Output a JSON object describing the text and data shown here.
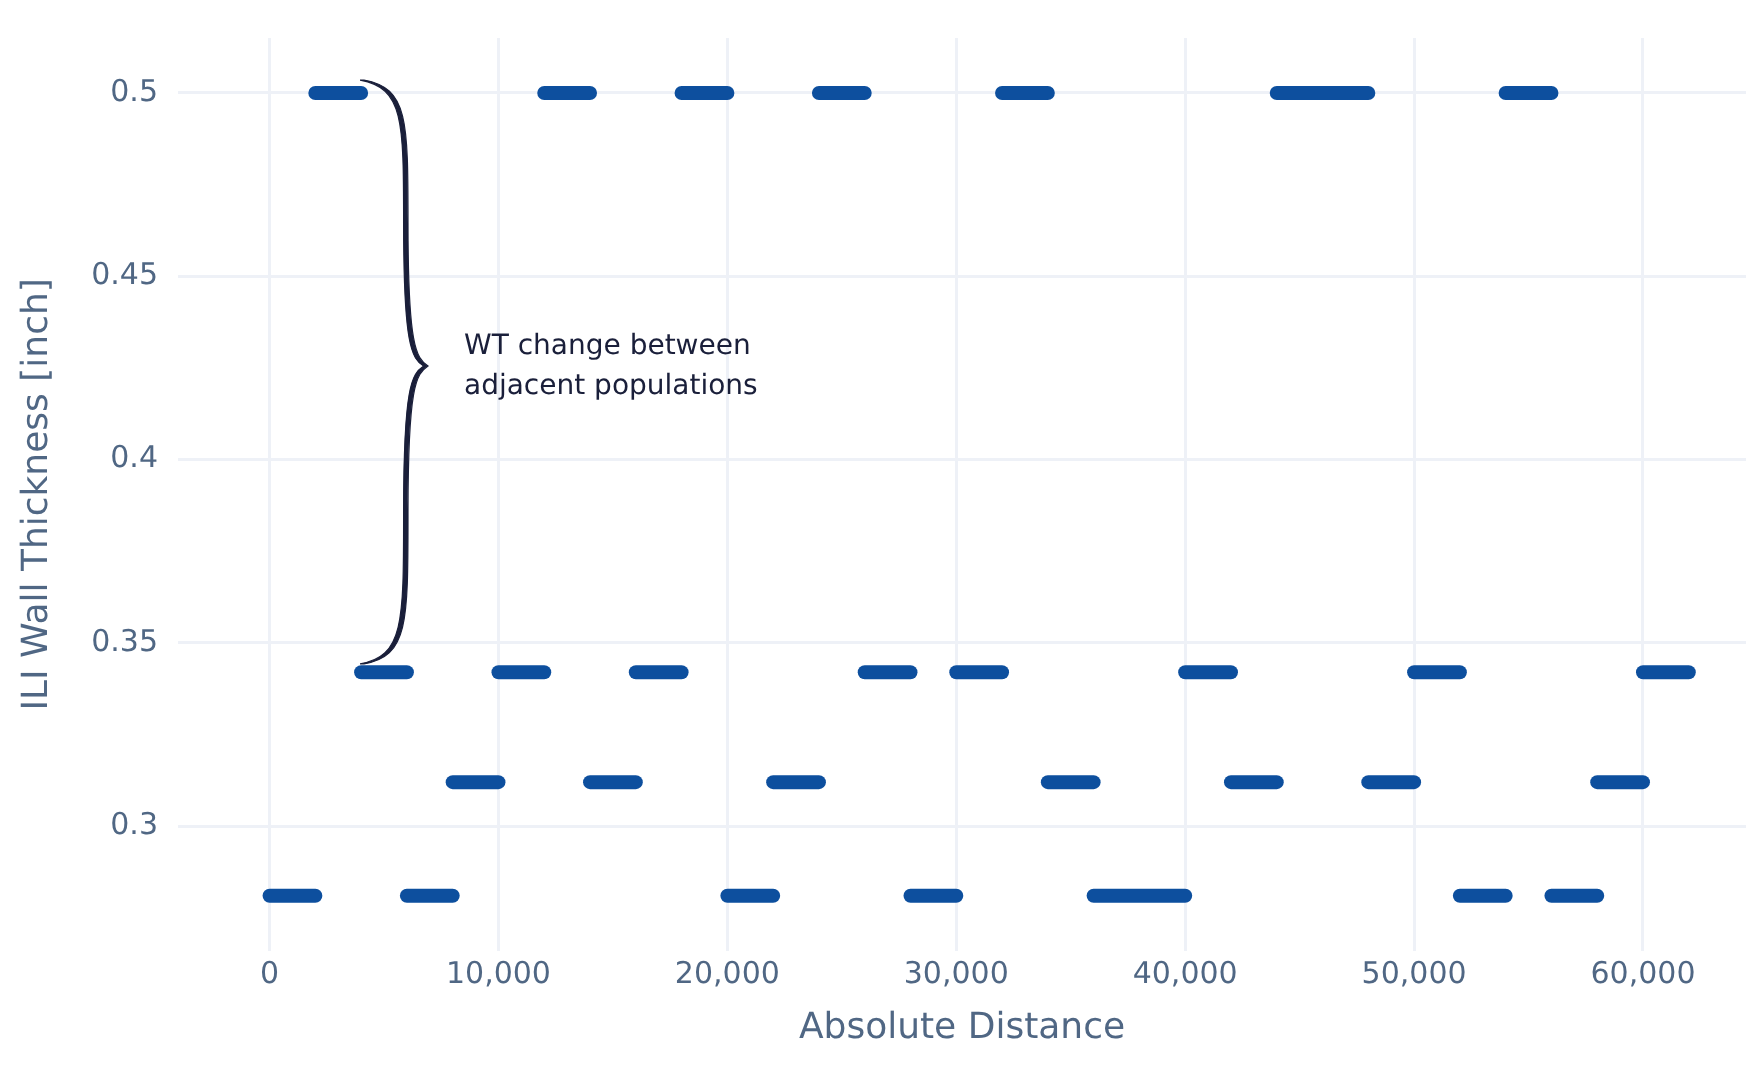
{
  "chart_data": {
    "type": "line",
    "xlabel": "Absolute Distance",
    "ylabel": "ILI Wall Thickness [inch]",
    "series": [
      {
        "color": "#0d4f9e",
        "x": [
          0,
          2000
        ],
        "values": [
          0.281,
          0.281
        ]
      },
      {
        "color": "#0d4f9e",
        "x": [
          2000,
          4000
        ],
        "values": [
          0.5,
          0.5
        ]
      },
      {
        "color": "#0d4f9e",
        "x": [
          4000,
          6000
        ],
        "values": [
          0.342,
          0.342
        ]
      },
      {
        "color": "#0d4f9e",
        "x": [
          6000,
          8000
        ],
        "values": [
          0.281,
          0.281
        ]
      },
      {
        "color": "#0d4f9e",
        "x": [
          8000,
          10000
        ],
        "values": [
          0.312,
          0.312
        ]
      },
      {
        "color": "#0d4f9e",
        "x": [
          10000,
          12000
        ],
        "values": [
          0.342,
          0.342
        ]
      },
      {
        "color": "#0d4f9e",
        "x": [
          12000,
          14000
        ],
        "values": [
          0.5,
          0.5
        ]
      },
      {
        "color": "#0d4f9e",
        "x": [
          14000,
          16000
        ],
        "values": [
          0.312,
          0.312
        ]
      },
      {
        "color": "#0d4f9e",
        "x": [
          16000,
          18000
        ],
        "values": [
          0.342,
          0.342
        ]
      },
      {
        "color": "#0d4f9e",
        "x": [
          18000,
          20000
        ],
        "values": [
          0.5,
          0.5
        ]
      },
      {
        "color": "#0d4f9e",
        "x": [
          20000,
          22000
        ],
        "values": [
          0.281,
          0.281
        ]
      },
      {
        "color": "#0d4f9e",
        "x": [
          22000,
          24000
        ],
        "values": [
          0.312,
          0.312
        ]
      },
      {
        "color": "#0d4f9e",
        "x": [
          24000,
          26000
        ],
        "values": [
          0.5,
          0.5
        ]
      },
      {
        "color": "#0d4f9e",
        "x": [
          26000,
          28000
        ],
        "values": [
          0.342,
          0.342
        ]
      },
      {
        "color": "#0d4f9e",
        "x": [
          28000,
          30000
        ],
        "values": [
          0.281,
          0.281
        ]
      },
      {
        "color": "#0d4f9e",
        "x": [
          30000,
          32000
        ],
        "values": [
          0.342,
          0.342
        ]
      },
      {
        "color": "#0d4f9e",
        "x": [
          32000,
          34000
        ],
        "values": [
          0.5,
          0.5
        ]
      },
      {
        "color": "#0d4f9e",
        "x": [
          34000,
          36000
        ],
        "values": [
          0.312,
          0.312
        ]
      },
      {
        "color": "#0d4f9e",
        "x": [
          36000,
          40000
        ],
        "values": [
          0.281,
          0.281
        ]
      },
      {
        "color": "#0d4f9e",
        "x": [
          40000,
          42000
        ],
        "values": [
          0.342,
          0.342
        ]
      },
      {
        "color": "#0d4f9e",
        "x": [
          42000,
          44000
        ],
        "values": [
          0.312,
          0.312
        ]
      },
      {
        "color": "#0d4f9e",
        "x": [
          44000,
          48000
        ],
        "values": [
          0.5,
          0.5
        ]
      },
      {
        "color": "#0d4f9e",
        "x": [
          48000,
          50000
        ],
        "values": [
          0.312,
          0.312
        ]
      },
      {
        "color": "#0d4f9e",
        "x": [
          50000,
          52000
        ],
        "values": [
          0.342,
          0.342
        ]
      },
      {
        "color": "#0d4f9e",
        "x": [
          52000,
          54000
        ],
        "values": [
          0.281,
          0.281
        ]
      },
      {
        "color": "#0d4f9e",
        "x": [
          54000,
          56000
        ],
        "values": [
          0.5,
          0.5
        ]
      },
      {
        "color": "#0d4f9e",
        "x": [
          56000,
          58000
        ],
        "values": [
          0.281,
          0.281
        ]
      },
      {
        "color": "#0d4f9e",
        "x": [
          58000,
          60000
        ],
        "values": [
          0.312,
          0.312
        ]
      },
      {
        "color": "#0d4f9e",
        "x": [
          60000,
          62000
        ],
        "values": [
          0.342,
          0.342
        ]
      }
    ],
    "xlim": [
      -4000,
      64500
    ],
    "ylim": [
      0.266,
      0.515
    ],
    "xticks": [
      0,
      {
        "value": 10000,
        "label": "10,000"
      },
      {
        "value": 20000,
        "label": "20,000"
      },
      {
        "value": 30000,
        "label": "30,000"
      },
      {
        "value": 40000,
        "label": "40,000"
      },
      {
        "value": 50000,
        "label": "50,000"
      },
      {
        "value": 60000,
        "label": "60,000"
      }
    ],
    "yticks": [
      0.3,
      0.35,
      0.4,
      0.45,
      0.5
    ],
    "grid": true,
    "marker": "none",
    "line_style": "solid",
    "annotations": [
      "WT change between adjacent populations"
    ]
  }
}
